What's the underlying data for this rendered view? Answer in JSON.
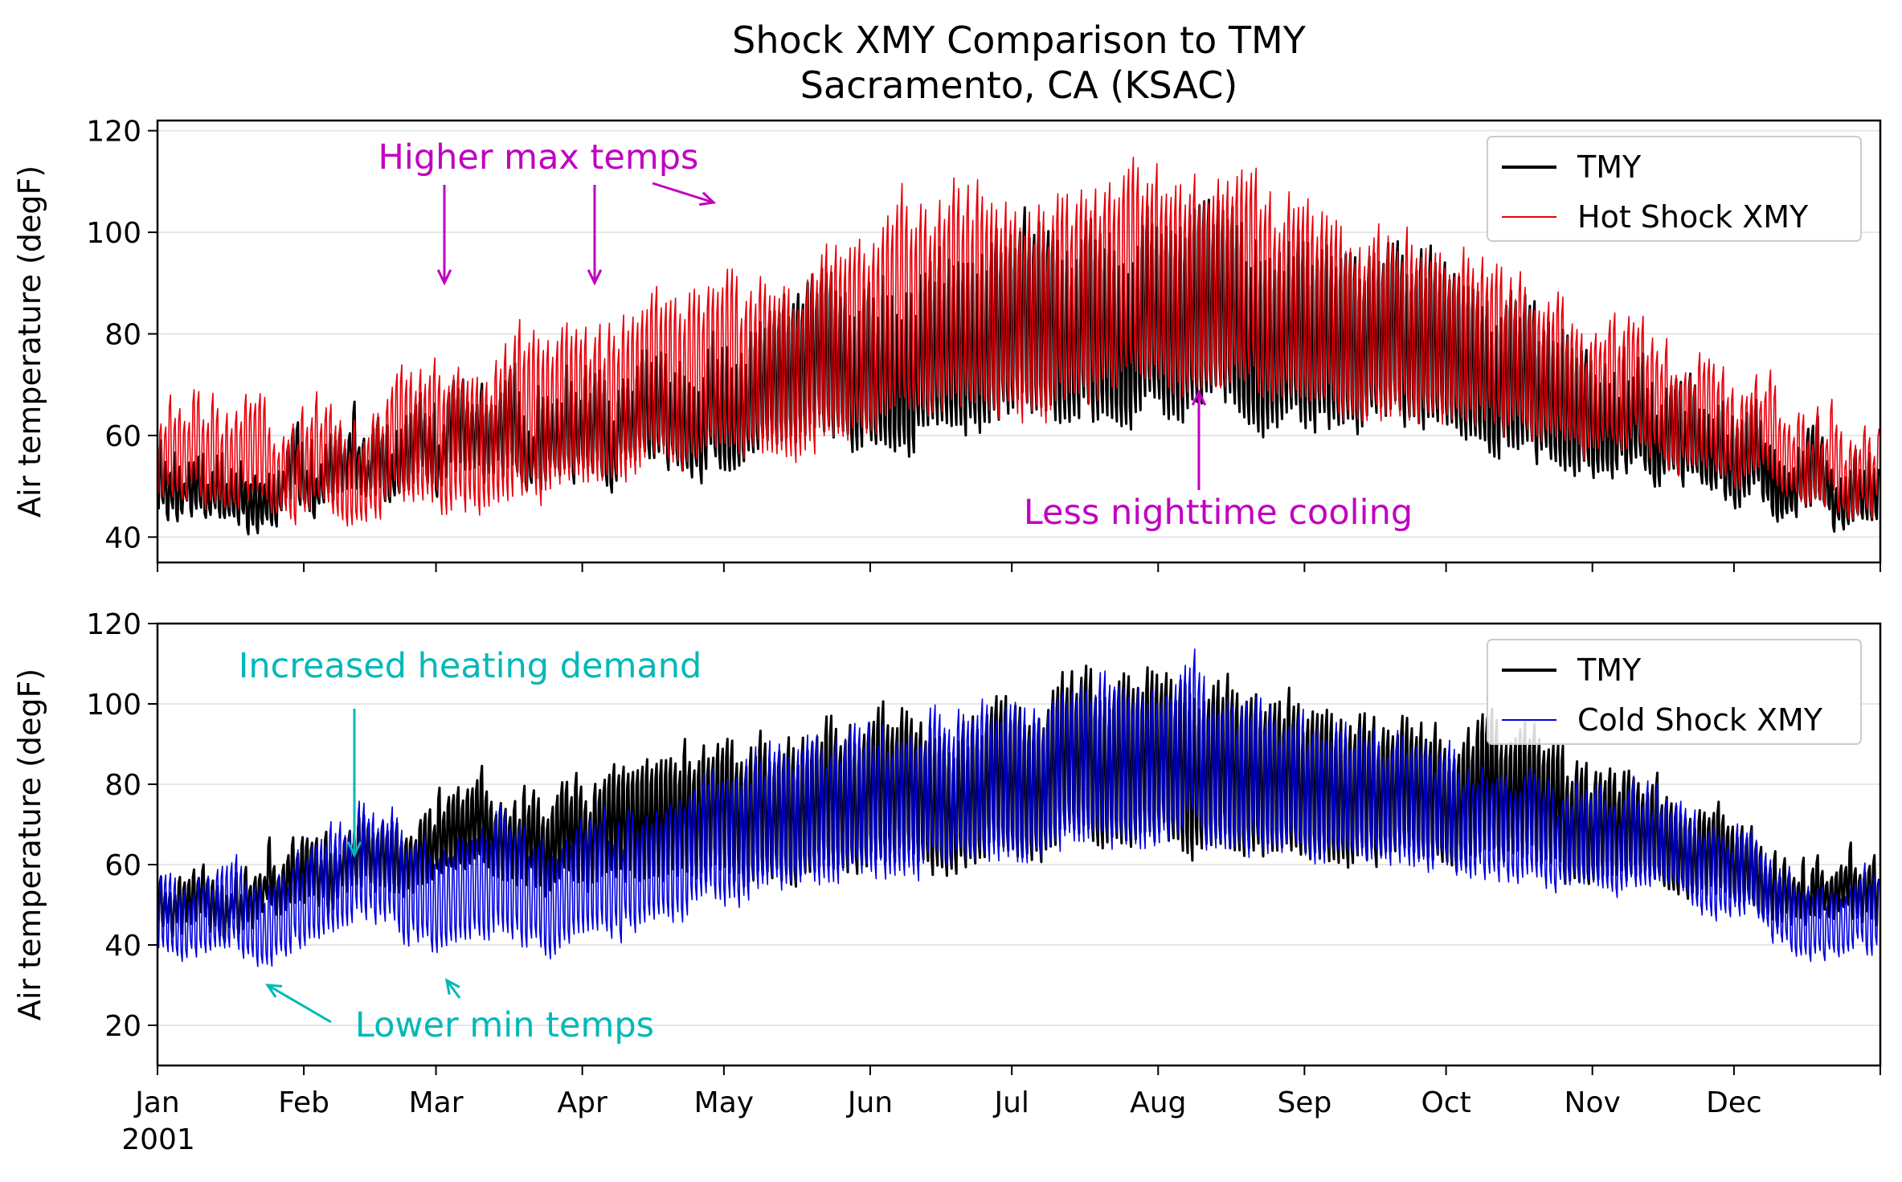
{
  "chart_data": {
    "figure_title": [
      "Shock XMY Comparison to TMY",
      "Sacramento, CA (KSAC)"
    ],
    "x_tick_labels": [
      "Jan",
      "Feb",
      "Mar",
      "Apr",
      "May",
      "Jun",
      "Jul",
      "Aug",
      "Sep",
      "Oct",
      "Nov",
      "Dec"
    ],
    "x_year_label": "2001",
    "x_range_days": [
      0,
      365
    ],
    "panels": [
      {
        "type": "line",
        "ylabel": "Air temperature (degF)",
        "ylim": [
          35,
          122
        ],
        "yticks": [
          40,
          60,
          80,
          100,
          120
        ],
        "grid": "horizontal",
        "legend_position": "top-right",
        "series": [
          {
            "name": "TMY",
            "color": "#000000",
            "monthly_daily_low_F": [
              44,
              47,
              50,
              53,
              55,
              59,
              62,
              61,
              60,
              55,
              50,
              45
            ],
            "monthly_daily_high_F": [
              55,
              62,
              68,
              75,
              86,
              98,
              105,
              104,
              98,
              88,
              70,
              60
            ]
          },
          {
            "name": "Hot Shock XMY",
            "color": "#e8000b",
            "monthly_daily_low_F": [
              43,
              44,
              47,
              51,
              55,
              62,
              66,
              67,
              63,
              58,
              53,
              48
            ],
            "monthly_daily_high_F": [
              62,
              68,
              84,
              86,
              95,
              112,
              113,
              114,
              105,
              90,
              78,
              65
            ]
          }
        ],
        "annotations": [
          {
            "text": "Higher max temps",
            "color": "#c000c0"
          },
          {
            "text": "Less nighttime cooling",
            "color": "#c000c0"
          }
        ]
      },
      {
        "type": "line",
        "ylabel": "Air temperature (degF)",
        "ylim": [
          10,
          120
        ],
        "yticks": [
          20,
          40,
          60,
          80,
          100,
          120
        ],
        "grid": "horizontal",
        "legend_position": "top-right",
        "series": [
          {
            "name": "TMY",
            "color": "#000000",
            "monthly_daily_low_F": [
              44,
              52,
              55,
              53,
              54,
              59,
              62,
              61,
              60,
              55,
              52,
              46
            ],
            "monthly_daily_high_F": [
              58,
              70,
              78,
              88,
              95,
              101,
              108,
              108,
              100,
              90,
              78,
              60
            ]
          },
          {
            "name": "Cold Shock XMY",
            "color": "#0000e0",
            "monthly_daily_low_F": [
              34,
              42,
              38,
              45,
              52,
              58,
              62,
              62,
              60,
              55,
              50,
              36
            ],
            "monthly_daily_high_F": [
              55,
              72,
              70,
              78,
              92,
              100,
              108,
              105,
              95,
              85,
              75,
              55
            ]
          }
        ],
        "annotations": [
          {
            "text": "Increased heating demand",
            "color": "#00b8b8"
          },
          {
            "text": "Lower min temps",
            "color": "#00b8b8"
          }
        ]
      }
    ]
  }
}
